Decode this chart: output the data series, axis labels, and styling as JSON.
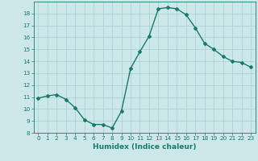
{
  "xlabel": "Humidex (Indice chaleur)",
  "x": [
    0,
    1,
    2,
    3,
    4,
    5,
    6,
    7,
    8,
    9,
    10,
    11,
    12,
    13,
    14,
    15,
    16,
    17,
    18,
    19,
    20,
    21,
    22,
    23
  ],
  "y": [
    10.9,
    11.1,
    11.2,
    10.8,
    10.1,
    9.1,
    8.7,
    8.7,
    8.4,
    9.8,
    13.4,
    14.8,
    16.1,
    18.4,
    18.5,
    18.4,
    17.9,
    16.8,
    15.5,
    15.0,
    14.4,
    14.0,
    13.9,
    13.5
  ],
  "line_color": "#1a7a6e",
  "marker": "D",
  "marker_size": 2.0,
  "bg_color": "#cce8e8",
  "grid_color": "#aacece",
  "ylim": [
    8,
    19
  ],
  "xlim": [
    -0.5,
    23.5
  ],
  "yticks": [
    8,
    9,
    10,
    11,
    12,
    13,
    14,
    15,
    16,
    17,
    18
  ],
  "xticks": [
    0,
    1,
    2,
    3,
    4,
    5,
    6,
    7,
    8,
    9,
    10,
    11,
    12,
    13,
    14,
    15,
    16,
    17,
    18,
    19,
    20,
    21,
    22,
    23
  ],
  "tick_fontsize": 5.2,
  "xlabel_fontsize": 6.5,
  "line_width": 1.0
}
